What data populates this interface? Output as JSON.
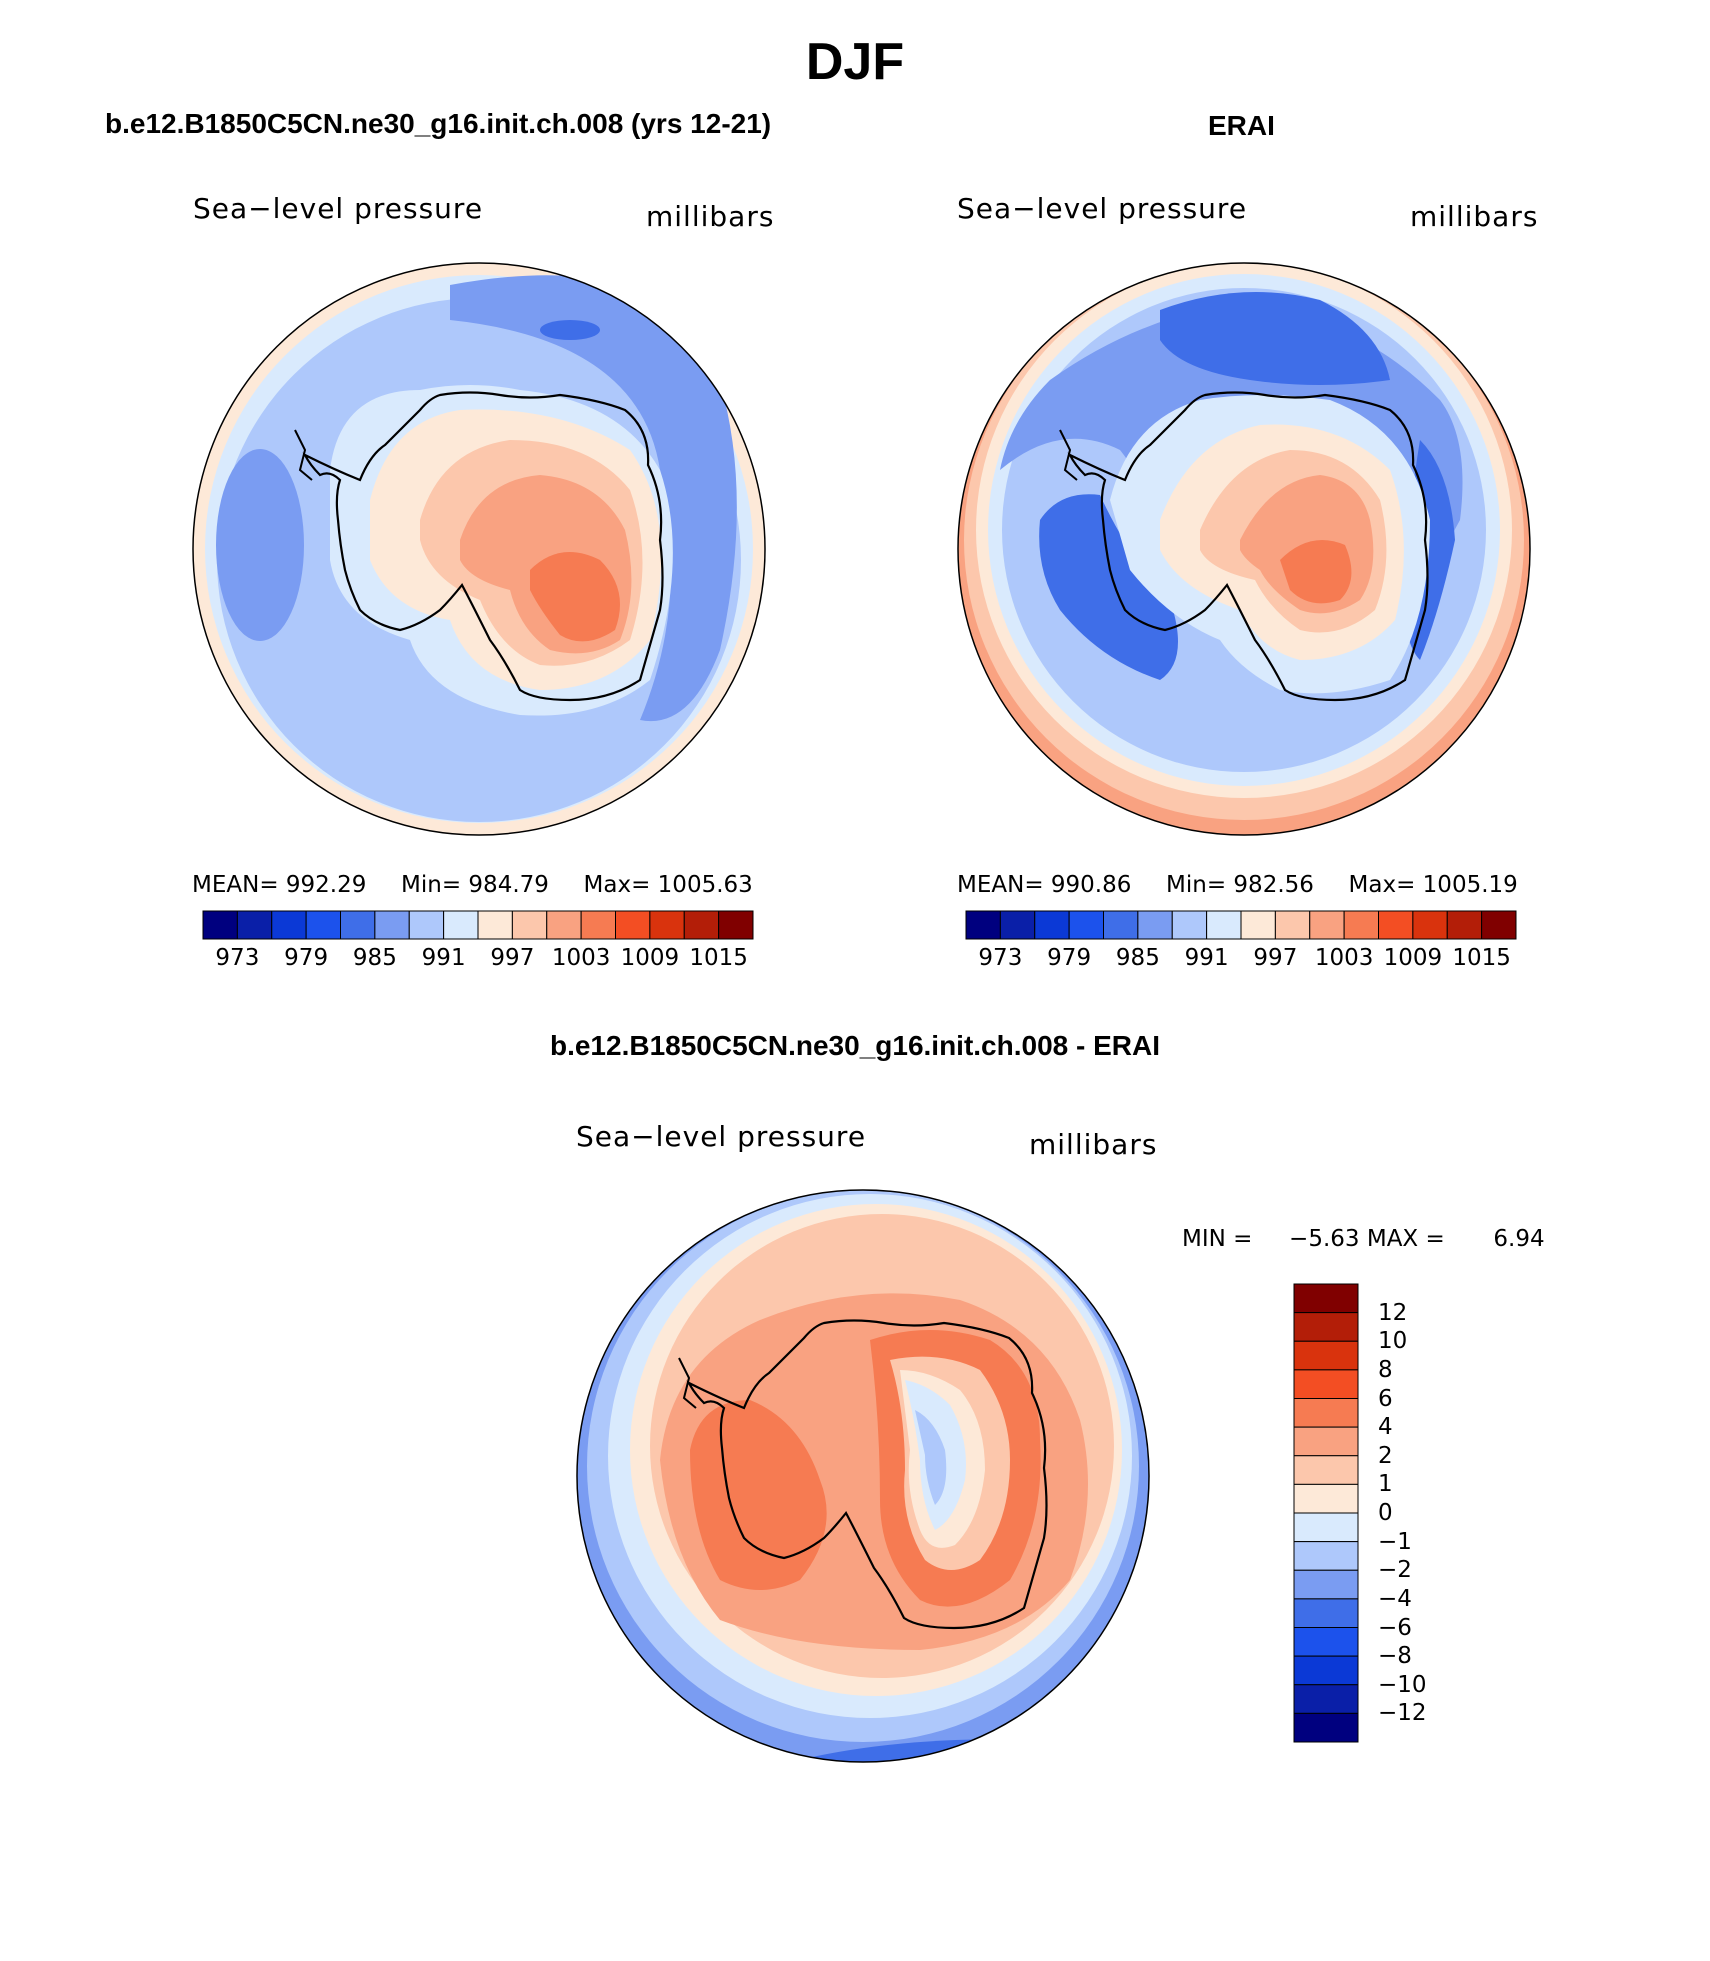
{
  "figure": {
    "title": "DJF",
    "colors": {
      "seq_palette": [
        "#00007f",
        "#0a1fa8",
        "#0b39d6",
        "#1c52ec",
        "#3f6ee8",
        "#7a9cf2",
        "#aec8fb",
        "#d9eafd",
        "#fde9d8",
        "#fcc7ac",
        "#f9a281",
        "#f67b52",
        "#f34e23",
        "#d9330d",
        "#b31e08",
        "#800000"
      ],
      "land_outline": "#000000",
      "frame": "#000000"
    }
  },
  "chart_data": [
    {
      "type": "heatmap",
      "projection": "south-polar-stereographic",
      "title": "b.e12.B1850C5CN.ne30_g16.init.ch.008 (yrs 12-21)",
      "variable": "Sea−level pressure",
      "units": "millibars",
      "stats": {
        "mean_label": "MEAN=",
        "mean": "992.29",
        "min_label": "Min=",
        "min": "984.79",
        "max_label": "Max=",
        "max": "1005.63"
      },
      "colorbar": {
        "orientation": "horizontal",
        "tick_labels": [
          "973",
          "979",
          "985",
          "991",
          "997",
          "1003",
          "1009",
          "1015"
        ]
      }
    },
    {
      "type": "heatmap",
      "projection": "south-polar-stereographic",
      "title": "ERAI",
      "variable": "Sea−level pressure",
      "units": "millibars",
      "stats": {
        "mean_label": "MEAN=",
        "mean": "990.86",
        "min_label": "Min=",
        "min": "982.56",
        "max_label": "Max=",
        "max": "1005.19"
      },
      "colorbar": {
        "orientation": "horizontal",
        "tick_labels": [
          "973",
          "979",
          "985",
          "991",
          "997",
          "1003",
          "1009",
          "1015"
        ]
      }
    },
    {
      "type": "heatmap",
      "projection": "south-polar-stereographic",
      "title": "b.e12.B1850C5CN.ne30_g16.init.ch.008 - ERAI",
      "variable": "Sea−level pressure",
      "units": "millibars",
      "stats": {
        "min_label": "MIN =",
        "min": "−5.63",
        "max_label": "MAX =",
        "max": "6.94"
      },
      "colorbar": {
        "orientation": "vertical",
        "tick_labels": [
          "12",
          "10",
          "8",
          "6",
          "4",
          "2",
          "1",
          "0",
          "−1",
          "−2",
          "−4",
          "−6",
          "−8",
          "−10",
          "−12"
        ]
      }
    }
  ]
}
